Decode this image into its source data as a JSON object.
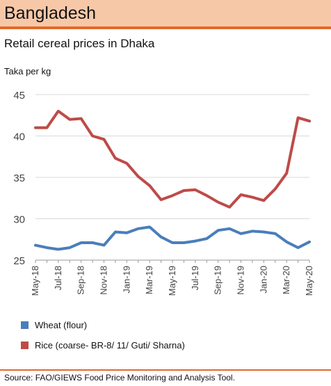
{
  "header": {
    "title": "Bangladesh"
  },
  "footer": {
    "source": "Source: FAO/GIEWS Food Price Monitoring and Analysis Tool."
  },
  "chart_data": {
    "type": "line",
    "title": "Retail cereal prices in Dhaka",
    "ylabel": "Taka per kg",
    "xlabel": "",
    "ylim": [
      25,
      45
    ],
    "yticks": [
      25,
      30,
      35,
      40,
      45
    ],
    "grid": "horizontal",
    "legend_position": "bottom",
    "x": [
      "May-18",
      "Jun-18",
      "Jul-18",
      "Aug-18",
      "Sep-18",
      "Oct-18",
      "Nov-18",
      "Dec-18",
      "Jan-19",
      "Feb-19",
      "Mar-19",
      "Apr-19",
      "May-19",
      "Jun-19",
      "Jul-19",
      "Aug-19",
      "Sep-19",
      "Oct-19",
      "Nov-19",
      "Dec-19",
      "Jan-20",
      "Feb-20",
      "Mar-20",
      "Apr-20",
      "May-20"
    ],
    "xticks": [
      "May-18",
      "Jul-18",
      "Sep-18",
      "Nov-18",
      "Jan-19",
      "Mar-19",
      "May-19",
      "Jul-19",
      "Sep-19",
      "Nov-19",
      "Jan-20",
      "Mar-20",
      "May-20"
    ],
    "series": [
      {
        "name": "Wheat (flour)",
        "color": "#4a7ebb",
        "values": [
          26.8,
          26.5,
          26.3,
          26.5,
          27.1,
          27.1,
          26.8,
          28.4,
          28.3,
          28.8,
          29.0,
          27.8,
          27.1,
          27.1,
          27.3,
          27.6,
          28.6,
          28.8,
          28.2,
          28.5,
          28.4,
          28.2,
          27.2,
          26.5,
          27.2
        ]
      },
      {
        "name": "Rice (coarse- BR-8/ 11/ Guti/ Sharna)",
        "color": "#be4b48",
        "values": [
          41.0,
          41.0,
          43.0,
          42.0,
          42.1,
          40.0,
          39.6,
          37.3,
          36.7,
          35.1,
          34.0,
          32.3,
          32.8,
          33.4,
          33.5,
          32.8,
          32.0,
          31.4,
          32.9,
          32.6,
          32.2,
          33.6,
          35.5,
          42.2,
          41.8
        ]
      }
    ]
  }
}
